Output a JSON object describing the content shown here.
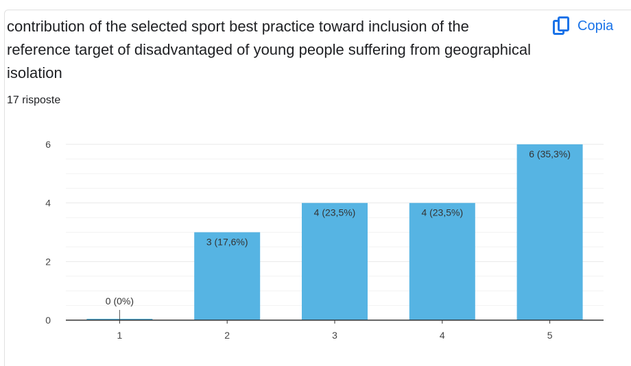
{
  "question": {
    "title": "contribution of the selected sport best practice toward inclusion of the reference target of  disadvantaged of young people suffering from geographical isolation",
    "responses": "17 risposte"
  },
  "copy_button": {
    "label": "Copia",
    "icon": "copy-icon",
    "color": "#1a73e8"
  },
  "colors": {
    "bar": "#56b4e3",
    "grid": "#e8e8e8",
    "axis": "#333333"
  },
  "chart_data": {
    "type": "bar",
    "categories": [
      "1",
      "2",
      "3",
      "4",
      "5"
    ],
    "values": [
      0,
      3,
      4,
      4,
      6
    ],
    "data_labels": [
      "0 (0%)",
      "3 (17,6%)",
      "4 (23,5%)",
      "4 (23,5%)",
      "6 (35,3%)"
    ],
    "y_ticks": [
      "0",
      "2",
      "4",
      "6"
    ],
    "ylim": [
      0,
      6
    ],
    "grid": true,
    "legend": "none"
  }
}
